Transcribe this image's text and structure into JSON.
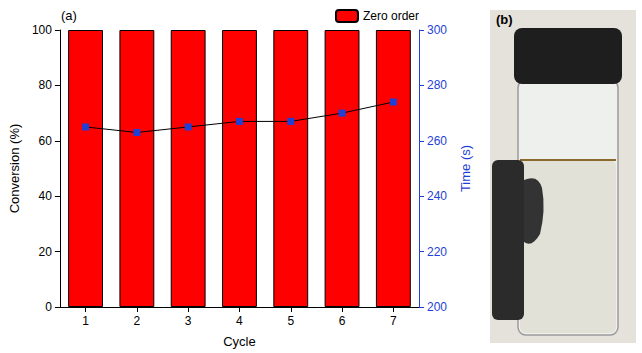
{
  "chart_data": {
    "type": "bar",
    "title": "(a)",
    "x_label": "Cycle",
    "y_label": "Conversion (%)",
    "y2_label": "Time (s)",
    "categories": [
      "1",
      "2",
      "3",
      "4",
      "5",
      "6",
      "7"
    ],
    "series": [
      {
        "name": "Zero order",
        "type": "bar",
        "color": "#ff0000",
        "values": [
          100,
          100,
          100,
          100,
          100,
          100,
          100
        ]
      },
      {
        "type": "line",
        "axis": "y2",
        "color": "#1f3fd6",
        "marker": "square",
        "line_style": "solid",
        "values": [
          265,
          263,
          265,
          267,
          267,
          270,
          274
        ]
      }
    ],
    "ylim": [
      0,
      100
    ],
    "yticks": [
      0,
      20,
      40,
      60,
      80,
      100
    ],
    "y2lim": [
      200,
      300
    ],
    "y2ticks": [
      200,
      220,
      240,
      260,
      280,
      300
    ],
    "legend": "top-right",
    "grid": false
  },
  "photo": {
    "label": "(b)"
  }
}
